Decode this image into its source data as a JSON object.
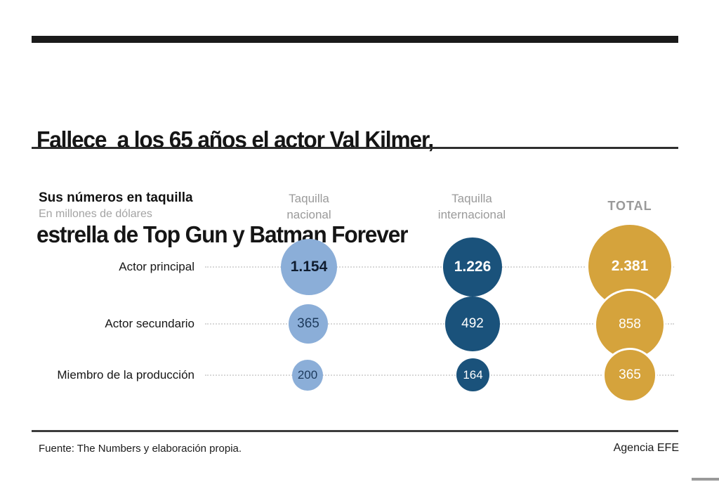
{
  "header": {
    "title_line1": "Fallece  a los 65 años el actor Val Kilmer,",
    "title_line2": "estrella de Top Gun y Batman Forever"
  },
  "chart": {
    "heading": "Sus números en taquilla",
    "subheading": "En millones de dólares",
    "col1": {
      "line1": "Taquilla",
      "line2": "nacional"
    },
    "col2": {
      "line1": "Taquilla",
      "line2": "internacional"
    },
    "col3": {
      "label": "TOTAL"
    },
    "row_labels": [
      "Actor principal",
      "Actor secundario",
      "Miembro de la producción"
    ]
  },
  "chart_data": {
    "type": "table",
    "variant": "bubble-matrix",
    "title": "Sus números en taquilla",
    "subtitle": "En millones de dólares",
    "unit": "millones de dólares",
    "categories": [
      "Actor principal",
      "Actor secundario",
      "Miembro de la producción"
    ],
    "series": [
      {
        "name": "Taquilla nacional",
        "values": [
          1154,
          365,
          200
        ],
        "labels": [
          "1.154",
          "365",
          "200"
        ],
        "color": "#8BAED8"
      },
      {
        "name": "Taquilla internacional",
        "values": [
          1226,
          492,
          164
        ],
        "labels": [
          "1.226",
          "492",
          "164"
        ],
        "color": "#1A527B"
      },
      {
        "name": "TOTAL",
        "values": [
          2381,
          858,
          365
        ],
        "labels": [
          "2.381",
          "858",
          "365"
        ],
        "color": "#D5A33C"
      }
    ],
    "legend_position": "top",
    "grid": false,
    "bubble_size_encodes": "value"
  },
  "colors": {
    "light_blue": "#8BAED8",
    "dark_blue": "#1A527B",
    "gold": "#D5A33C",
    "bar_black": "#1b1b1b",
    "header_gray": "#9a9a9a"
  },
  "footer": {
    "source": "Fuente: The Numbers y elaboración propia.",
    "credit": "Agencia EFE"
  }
}
